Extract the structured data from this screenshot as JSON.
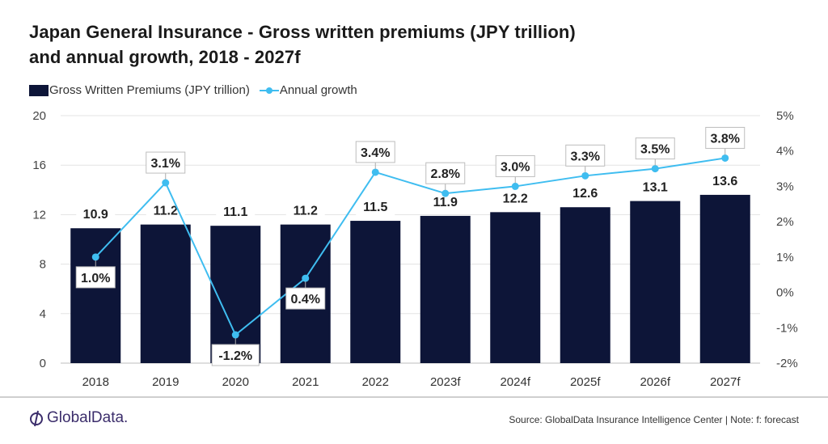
{
  "title_lines": [
    "Japan General Insurance - Gross written premiums (JPY trillion)",
    "and annual growth, 2018 - 2027f"
  ],
  "legend": {
    "bar_label": "Gross Written Premiums (JPY trillion)",
    "line_label": "Annual growth"
  },
  "colors": {
    "bar": "#0d1538",
    "line": "#3fbdf0",
    "grid": "#e3e3e3",
    "brand": "#3b2d6b"
  },
  "chart_data": {
    "type": "bar",
    "title": "Japan General Insurance - Gross written premiums (JPY trillion) and annual growth, 2018 - 2027f",
    "categories": [
      "2018",
      "2019",
      "2020",
      "2021",
      "2022",
      "2023f",
      "2024f",
      "2025f",
      "2026f",
      "2027f"
    ],
    "series": [
      {
        "name": "Gross Written Premiums (JPY trillion)",
        "type": "bar",
        "axis": "left",
        "values": [
          10.9,
          11.2,
          11.1,
          11.2,
          11.5,
          11.9,
          12.2,
          12.6,
          13.1,
          13.6
        ],
        "labels": [
          "10.9",
          "11.2",
          "11.1",
          "11.2",
          "11.5",
          "11.9",
          "12.2",
          "12.6",
          "13.1",
          "13.6"
        ]
      },
      {
        "name": "Annual growth",
        "type": "line",
        "axis": "right",
        "values": [
          1.0,
          3.1,
          -1.2,
          0.4,
          3.4,
          2.8,
          3.0,
          3.3,
          3.5,
          3.8
        ],
        "labels": [
          "1.0%",
          "3.1%",
          "-1.2%",
          "0.4%",
          "3.4%",
          "2.8%",
          "3.0%",
          "3.3%",
          "3.5%",
          "3.8%"
        ],
        "label_position": [
          "below",
          "above",
          "below",
          "below",
          "above",
          "above",
          "above",
          "above",
          "above",
          "above"
        ]
      }
    ],
    "xlabel": "",
    "ylabel": "",
    "ylim": [
      0,
      20
    ],
    "yticks": [
      "0",
      "4",
      "8",
      "12",
      "16",
      "20"
    ],
    "y2lim": [
      -2,
      5
    ],
    "y2ticks": [
      "-2%",
      "-1%",
      "0%",
      "1%",
      "2%",
      "3%",
      "4%",
      "5%"
    ],
    "grid": true,
    "legend_position": "top-left"
  },
  "footer": {
    "brand": "GlobalData.",
    "source": "Source: GlobalData Insurance Intelligence Center | Note: f: forecast"
  }
}
